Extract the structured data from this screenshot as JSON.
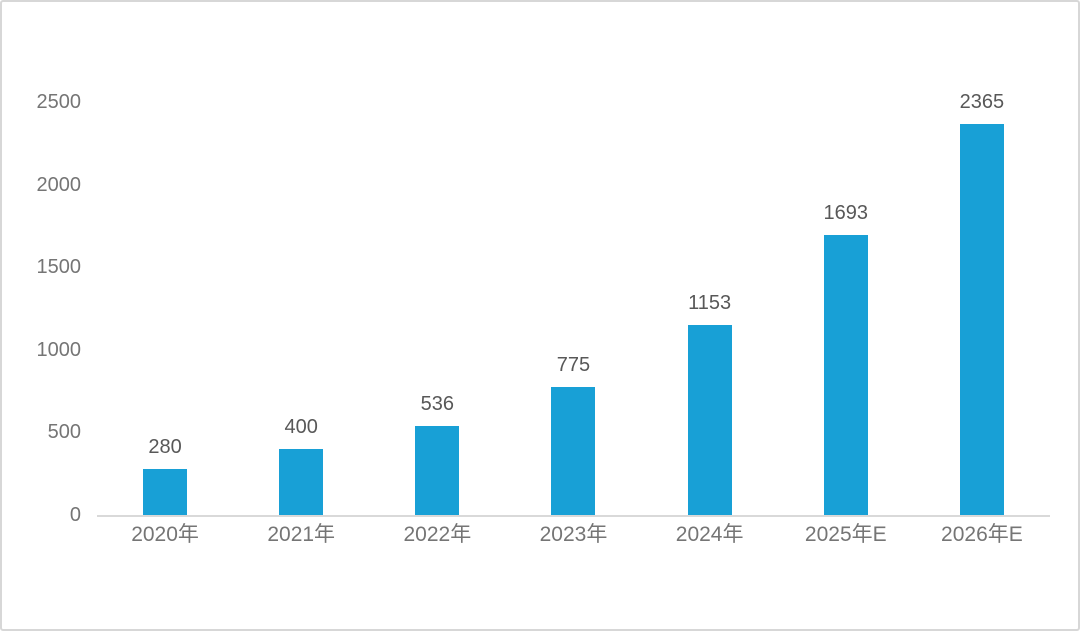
{
  "chart_data": {
    "type": "bar",
    "categories": [
      "2020年",
      "2021年",
      "2022年",
      "2023年",
      "2024年",
      "2025年E",
      "2026年E"
    ],
    "values": [
      280,
      400,
      536,
      775,
      1153,
      1693,
      2365
    ],
    "data_labels": [
      "280",
      "400",
      "536",
      "775",
      "1153",
      "1693",
      "2365"
    ],
    "title": "",
    "xlabel": "",
    "ylabel": "",
    "ylim": [
      0,
      2500
    ],
    "yticks": [
      "0",
      "500",
      "1000",
      "1500",
      "2000",
      "2500"
    ],
    "grid": false,
    "legend": false,
    "bar_color": "#18a0d6",
    "axis_line_color": "#d9d9d9",
    "tick_label_color": "#757575",
    "value_label_color": "#585858"
  }
}
